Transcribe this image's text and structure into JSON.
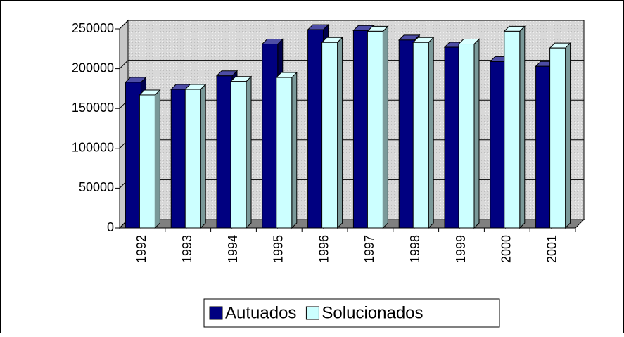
{
  "chart_data": {
    "type": "bar3d",
    "categories": [
      "1992",
      "1993",
      "1994",
      "1995",
      "1996",
      "1997",
      "1998",
      "1999",
      "2000",
      "2001"
    ],
    "series": [
      {
        "name": "Autuados",
        "color": "#000080",
        "values": [
          183000,
          174000,
          191000,
          231000,
          249000,
          248000,
          236000,
          227000,
          209000,
          203000
        ]
      },
      {
        "name": "Solucionados",
        "color": "#ccffff",
        "values": [
          167000,
          174000,
          184000,
          189000,
          233000,
          247000,
          233000,
          231000,
          247000,
          226000
        ]
      }
    ],
    "ylim": [
      0,
      250000
    ],
    "yticks": [
      0,
      50000,
      100000,
      150000,
      200000,
      250000
    ],
    "grid": true,
    "legend": "bottom"
  }
}
